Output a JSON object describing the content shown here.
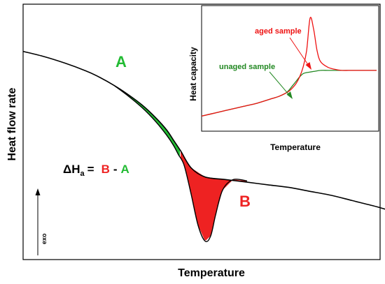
{
  "chart_data": [
    {
      "type": "line",
      "xlabel": "Temperature",
      "ylabel": "Heat flow rate",
      "exo_label": "exo",
      "region_labels": {
        "A": "A",
        "B": "B"
      },
      "equation": {
        "prefix": "ΔH",
        "subscript": "a",
        "equals": "=",
        "term1": "B",
        "minus": "-",
        "term2": "A"
      },
      "series": [
        {
          "role": "baseline",
          "x": [
            0,
            30,
            60,
            90,
            110,
            130,
            150,
            170,
            190,
            205,
            215,
            225,
            240,
            260,
            290,
            320,
            350,
            380,
            410,
            440,
            470,
            500,
            520
          ],
          "y": [
            0.745,
            0.725,
            0.7,
            0.67,
            0.645,
            0.615,
            0.58,
            0.54,
            0.49,
            0.445,
            0.405,
            0.365,
            0.3,
            0.265,
            0.255,
            0.245,
            0.235,
            0.225,
            0.21,
            0.195,
            0.175,
            0.155,
            0.14
          ]
        },
        {
          "role": "aged_curve",
          "x": [
            130,
            150,
            170,
            190,
            205,
            215,
            222,
            230,
            240,
            250,
            260,
            268,
            275,
            285,
            300,
            320
          ],
          "y": [
            0.615,
            0.575,
            0.53,
            0.475,
            0.425,
            0.385,
            0.35,
            0.31,
            0.2,
            0.08,
            0.02,
            0.04,
            0.12,
            0.215,
            0.255,
            0.25
          ]
        }
      ],
      "colors": {
        "A": "#22bb33",
        "B": "#ee2222",
        "curve": "#000000"
      }
    },
    {
      "type": "line",
      "xlabel": "Temperature",
      "ylabel": "Heat  capacity",
      "annotations": [
        {
          "text": "aged sample",
          "color": "#ee1111"
        },
        {
          "text": "unaged sample",
          "color": "#228822"
        }
      ],
      "series": [
        {
          "name": "aged sample",
          "color": "#ee1111",
          "x": [
            0,
            20,
            40,
            60,
            80,
            100,
            110,
            120,
            125,
            130,
            135,
            140,
            145,
            150,
            155,
            160,
            165,
            170,
            180,
            190,
            200,
            210,
            220,
            230,
            240,
            250
          ],
          "y": [
            0.1,
            0.13,
            0.16,
            0.19,
            0.22,
            0.26,
            0.28,
            0.31,
            0.33,
            0.36,
            0.4,
            0.46,
            0.55,
            0.7,
            1.0,
            0.9,
            0.7,
            0.6,
            0.55,
            0.53,
            0.52,
            0.52,
            0.52,
            0.52,
            0.52,
            0.52
          ]
        },
        {
          "name": "unaged sample",
          "color": "#228822",
          "x": [
            0,
            20,
            40,
            60,
            80,
            100,
            110,
            120,
            125,
            130,
            135,
            140,
            145,
            150,
            160,
            170,
            180,
            190,
            200,
            210,
            220,
            230,
            240,
            250
          ],
          "y": [
            0.1,
            0.13,
            0.16,
            0.19,
            0.22,
            0.26,
            0.28,
            0.31,
            0.34,
            0.38,
            0.42,
            0.46,
            0.49,
            0.5,
            0.51,
            0.52,
            0.52,
            0.52,
            0.52,
            0.52,
            0.52,
            0.52,
            0.52,
            0.52
          ]
        }
      ]
    }
  ]
}
